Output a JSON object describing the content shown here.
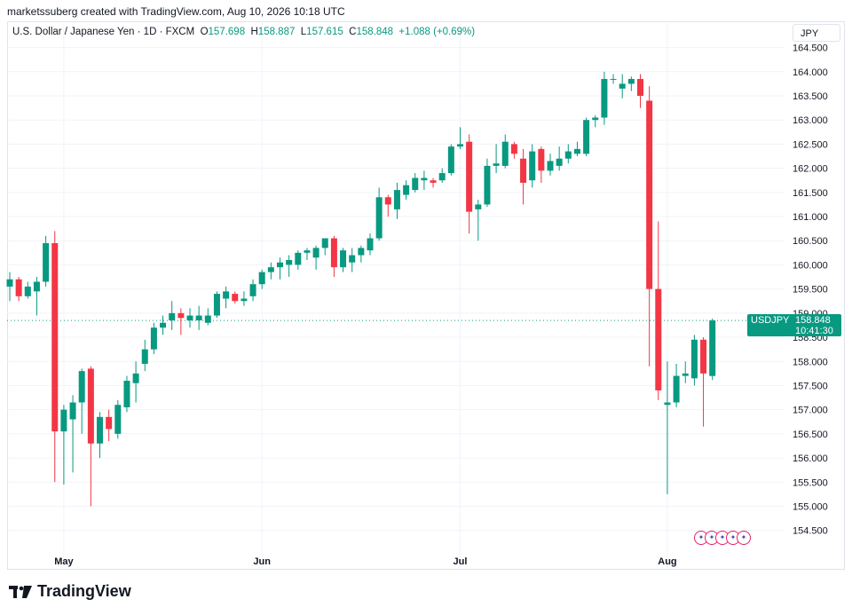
{
  "header": {
    "text": "marketssuberg created with TradingView.com, Aug 10, 2026 10:18 UTC"
  },
  "legend": {
    "symbol": "U.S. Dollar / Japanese Yen · 1D · FXCM",
    "open_label": "O",
    "open": "157.698",
    "high_label": "H",
    "high": "158.887",
    "low_label": "L",
    "low": "157.615",
    "close_label": "C",
    "close": "158.848",
    "change": "+1.088 (+0.69%)"
  },
  "currency_button": "JPY",
  "price_tag": {
    "symbol": "USDJPY",
    "price": "158.848",
    "countdown": "10:41:30"
  },
  "footer": {
    "brand": "TradingView"
  },
  "colors": {
    "up": "#089981",
    "down": "#f23645",
    "grid": "#f0f3fa",
    "last_price_line": "#089981"
  },
  "chart_data": {
    "type": "candlestick",
    "ylim": [
      154.2,
      164.75
    ],
    "y_ticks": [
      "164.500",
      "164.000",
      "163.500",
      "163.000",
      "162.500",
      "162.000",
      "161.500",
      "161.000",
      "160.500",
      "160.000",
      "159.500",
      "159.000",
      "158.500",
      "158.000",
      "157.500",
      "157.000",
      "156.500",
      "156.000",
      "155.500",
      "155.000",
      "154.500"
    ],
    "x_labels": [
      {
        "label": "May",
        "bar": 6
      },
      {
        "label": "Jun",
        "bar": 28
      },
      {
        "label": "Jul",
        "bar": 50
      },
      {
        "label": "Aug",
        "bar": 73
      }
    ],
    "last_price": 158.848,
    "candles": [
      {
        "o": 159.55,
        "h": 159.85,
        "l": 159.25,
        "c": 159.7
      },
      {
        "o": 159.7,
        "h": 159.75,
        "l": 159.25,
        "c": 159.35
      },
      {
        "o": 159.35,
        "h": 159.65,
        "l": 159.3,
        "c": 159.55
      },
      {
        "o": 159.45,
        "h": 159.75,
        "l": 158.95,
        "c": 159.65
      },
      {
        "o": 159.65,
        "h": 160.6,
        "l": 159.55,
        "c": 160.45
      },
      {
        "o": 160.45,
        "h": 160.7,
        "l": 155.5,
        "c": 156.55
      },
      {
        "o": 156.55,
        "h": 157.1,
        "l": 155.45,
        "c": 157.0
      },
      {
        "o": 156.8,
        "h": 157.3,
        "l": 155.7,
        "c": 157.15
      },
      {
        "o": 157.15,
        "h": 157.85,
        "l": 156.5,
        "c": 157.8
      },
      {
        "o": 157.85,
        "h": 157.9,
        "l": 155.0,
        "c": 156.3
      },
      {
        "o": 156.3,
        "h": 156.95,
        "l": 156.0,
        "c": 156.85
      },
      {
        "o": 156.85,
        "h": 157.0,
        "l": 156.35,
        "c": 156.6
      },
      {
        "o": 156.5,
        "h": 157.2,
        "l": 156.4,
        "c": 157.1
      },
      {
        "o": 157.05,
        "h": 157.7,
        "l": 156.95,
        "c": 157.6
      },
      {
        "o": 157.55,
        "h": 158.0,
        "l": 157.15,
        "c": 157.75
      },
      {
        "o": 157.95,
        "h": 158.45,
        "l": 157.8,
        "c": 158.25
      },
      {
        "o": 158.25,
        "h": 158.8,
        "l": 158.15,
        "c": 158.7
      },
      {
        "o": 158.7,
        "h": 158.95,
        "l": 158.55,
        "c": 158.8
      },
      {
        "o": 158.85,
        "h": 159.25,
        "l": 158.65,
        "c": 159.0
      },
      {
        "o": 159.0,
        "h": 159.1,
        "l": 158.55,
        "c": 158.9
      },
      {
        "o": 158.85,
        "h": 159.1,
        "l": 158.7,
        "c": 158.95
      },
      {
        "o": 158.85,
        "h": 159.15,
        "l": 158.65,
        "c": 158.95
      },
      {
        "o": 158.8,
        "h": 159.1,
        "l": 158.75,
        "c": 158.95
      },
      {
        "o": 158.95,
        "h": 159.45,
        "l": 158.9,
        "c": 159.4
      },
      {
        "o": 159.3,
        "h": 159.55,
        "l": 159.1,
        "c": 159.45
      },
      {
        "o": 159.4,
        "h": 159.45,
        "l": 159.2,
        "c": 159.25
      },
      {
        "o": 159.25,
        "h": 159.45,
        "l": 159.15,
        "c": 159.3
      },
      {
        "o": 159.35,
        "h": 159.7,
        "l": 159.25,
        "c": 159.6
      },
      {
        "o": 159.6,
        "h": 159.9,
        "l": 159.5,
        "c": 159.85
      },
      {
        "o": 159.85,
        "h": 160.05,
        "l": 159.7,
        "c": 159.95
      },
      {
        "o": 159.95,
        "h": 160.15,
        "l": 159.7,
        "c": 160.05
      },
      {
        "o": 160.0,
        "h": 160.2,
        "l": 159.75,
        "c": 160.1
      },
      {
        "o": 160.0,
        "h": 160.3,
        "l": 159.9,
        "c": 160.25
      },
      {
        "o": 160.25,
        "h": 160.35,
        "l": 160.1,
        "c": 160.3
      },
      {
        "o": 160.15,
        "h": 160.4,
        "l": 159.9,
        "c": 160.35
      },
      {
        "o": 160.35,
        "h": 160.55,
        "l": 160.2,
        "c": 160.55
      },
      {
        "o": 160.55,
        "h": 160.6,
        "l": 159.75,
        "c": 159.95
      },
      {
        "o": 159.95,
        "h": 160.35,
        "l": 159.85,
        "c": 160.3
      },
      {
        "o": 160.05,
        "h": 160.35,
        "l": 159.85,
        "c": 160.2
      },
      {
        "o": 160.2,
        "h": 160.4,
        "l": 160.05,
        "c": 160.35
      },
      {
        "o": 160.3,
        "h": 160.65,
        "l": 160.2,
        "c": 160.55
      },
      {
        "o": 160.55,
        "h": 161.6,
        "l": 160.5,
        "c": 161.4
      },
      {
        "o": 161.4,
        "h": 161.45,
        "l": 161.0,
        "c": 161.25
      },
      {
        "o": 161.15,
        "h": 161.7,
        "l": 160.95,
        "c": 161.55
      },
      {
        "o": 161.45,
        "h": 161.75,
        "l": 161.35,
        "c": 161.65
      },
      {
        "o": 161.55,
        "h": 161.9,
        "l": 161.5,
        "c": 161.8
      },
      {
        "o": 161.75,
        "h": 161.95,
        "l": 161.55,
        "c": 161.8
      },
      {
        "o": 161.75,
        "h": 161.8,
        "l": 161.6,
        "c": 161.7
      },
      {
        "o": 161.75,
        "h": 162.0,
        "l": 161.7,
        "c": 161.9
      },
      {
        "o": 161.9,
        "h": 162.5,
        "l": 161.85,
        "c": 162.45
      },
      {
        "o": 162.45,
        "h": 162.85,
        "l": 162.4,
        "c": 162.5
      },
      {
        "o": 162.55,
        "h": 162.7,
        "l": 160.65,
        "c": 161.1
      },
      {
        "o": 161.15,
        "h": 161.35,
        "l": 160.5,
        "c": 161.25
      },
      {
        "o": 161.25,
        "h": 162.2,
        "l": 161.2,
        "c": 162.05
      },
      {
        "o": 162.05,
        "h": 162.5,
        "l": 161.9,
        "c": 162.1
      },
      {
        "o": 162.05,
        "h": 162.7,
        "l": 162.0,
        "c": 162.55
      },
      {
        "o": 162.5,
        "h": 162.55,
        "l": 162.2,
        "c": 162.3
      },
      {
        "o": 162.2,
        "h": 162.4,
        "l": 161.25,
        "c": 161.7
      },
      {
        "o": 161.75,
        "h": 162.5,
        "l": 161.6,
        "c": 162.35
      },
      {
        "o": 162.4,
        "h": 162.45,
        "l": 161.7,
        "c": 161.95
      },
      {
        "o": 161.95,
        "h": 162.3,
        "l": 161.85,
        "c": 162.15
      },
      {
        "o": 162.05,
        "h": 162.45,
        "l": 161.95,
        "c": 162.2
      },
      {
        "o": 162.2,
        "h": 162.5,
        "l": 162.1,
        "c": 162.35
      },
      {
        "o": 162.3,
        "h": 162.55,
        "l": 162.25,
        "c": 162.4
      },
      {
        "o": 162.3,
        "h": 163.05,
        "l": 162.25,
        "c": 163.0
      },
      {
        "o": 163.0,
        "h": 163.1,
        "l": 162.85,
        "c": 163.05
      },
      {
        "o": 163.05,
        "h": 164.0,
        "l": 162.9,
        "c": 163.85
      },
      {
        "o": 163.85,
        "h": 163.95,
        "l": 163.75,
        "c": 163.85
      },
      {
        "o": 163.65,
        "h": 163.95,
        "l": 163.45,
        "c": 163.75
      },
      {
        "o": 163.75,
        "h": 163.9,
        "l": 163.6,
        "c": 163.85
      },
      {
        "o": 163.85,
        "h": 163.95,
        "l": 163.25,
        "c": 163.5
      },
      {
        "o": 163.4,
        "h": 163.7,
        "l": 157.9,
        "c": 159.5
      },
      {
        "o": 159.5,
        "h": 160.9,
        "l": 157.2,
        "c": 157.4
      },
      {
        "o": 157.1,
        "h": 158.0,
        "l": 155.25,
        "c": 157.15
      },
      {
        "o": 157.15,
        "h": 157.95,
        "l": 157.05,
        "c": 157.7
      },
      {
        "o": 157.7,
        "h": 158.0,
        "l": 157.55,
        "c": 157.75
      },
      {
        "o": 157.65,
        "h": 158.55,
        "l": 157.5,
        "c": 158.45
      },
      {
        "o": 158.45,
        "h": 158.5,
        "l": 156.65,
        "c": 157.75
      },
      {
        "o": 157.698,
        "h": 158.887,
        "l": 157.615,
        "c": 158.848
      }
    ]
  }
}
